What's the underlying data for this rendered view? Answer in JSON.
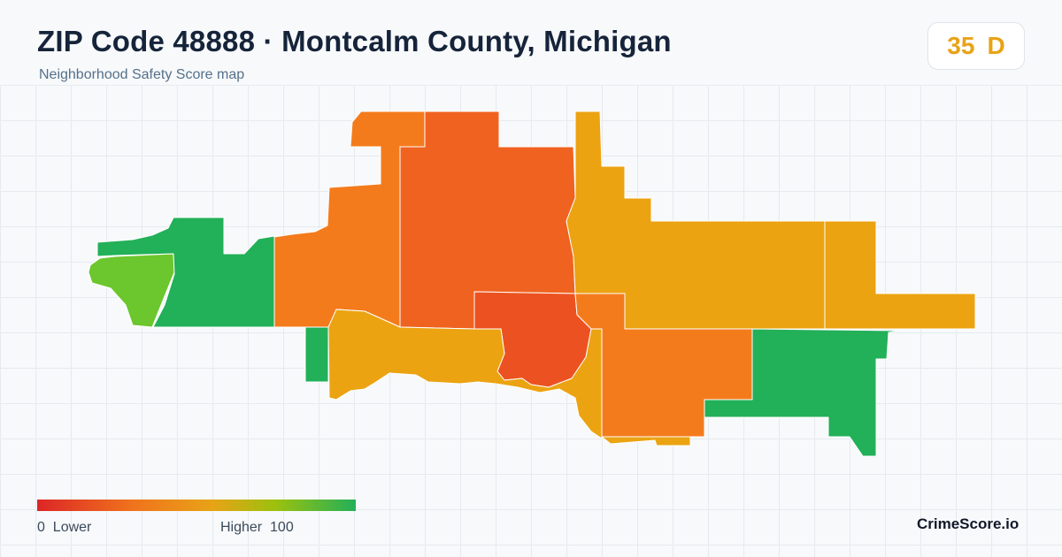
{
  "header": {
    "title": "ZIP Code 48888 · Montcalm County, Michigan",
    "subtitle": "Neighborhood Safety Score map"
  },
  "score_badge": {
    "score": "35",
    "grade": "D",
    "color": "#e8a317"
  },
  "legend": {
    "min_label": "0",
    "min_text": "Lower",
    "max_text": "Higher",
    "max_label": "100",
    "colors": [
      "#dc2626",
      "#f0731d",
      "#e8a317",
      "#9bc10e",
      "#22b058"
    ]
  },
  "map": {
    "regions_colors": {
      "green": "#22b058",
      "lime": "#6cc62d",
      "orange": "#f47b1c",
      "red_orange": "#f0621f",
      "red": "#ec5221",
      "amber": "#eba312"
    }
  },
  "brand": "CrimeScore.io"
}
